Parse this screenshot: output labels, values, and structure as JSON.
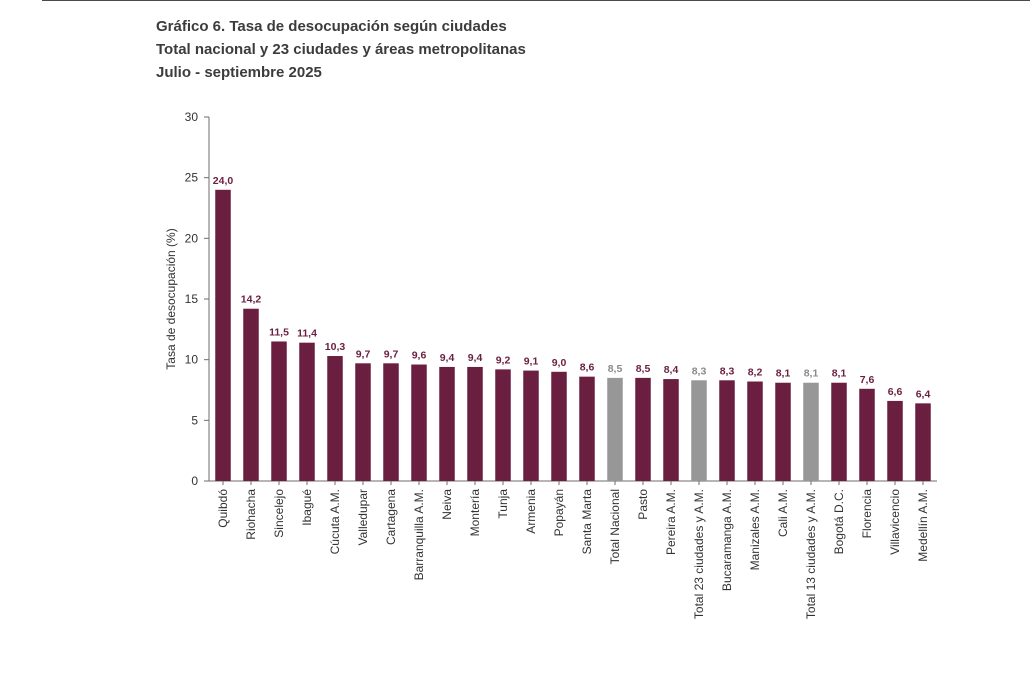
{
  "header": {
    "title": "Gráfico 6. Tasa de desocupación según ciudades",
    "subtitle": "Total nacional y 23 ciudades y áreas metropolitanas",
    "period": "Julio - septiembre 2025"
  },
  "colors": {
    "city": "#6b1f40",
    "aggregate": "#979797",
    "city_label": "#6b1f40",
    "aggregate_label": "#8a8a8a"
  },
  "chart_data": {
    "type": "bar",
    "title": "Gráfico 6. Tasa de desocupación según ciudades",
    "ylabel": "Tasa de desocupación (%)",
    "xlabel": "",
    "ylim": [
      0,
      30
    ],
    "yticks": [
      0,
      5,
      10,
      15,
      20,
      25,
      30
    ],
    "grid": false,
    "categories": [
      "Quibdó",
      "Riohacha",
      "Sincelejo",
      "Ibagué",
      "Cúcuta A.M.",
      "Valledupar",
      "Cartagena",
      "Barranquilla A.M.",
      "Neiva",
      "Montería",
      "Tunja",
      "Armenia",
      "Popayán",
      "Santa Marta",
      "Total Nacional",
      "Pasto",
      "Pereira A.M.",
      "Total 23 ciudades y A.M.",
      "Bucaramanga A.M.",
      "Manizales A.M.",
      "Cali A.M.",
      "Total 13 ciudades y A.M.",
      "Bogotá D.C.",
      "Florencia",
      "Villavicencio",
      "Medellín A.M."
    ],
    "values": [
      24.0,
      14.2,
      11.5,
      11.4,
      10.3,
      9.7,
      9.7,
      9.6,
      9.4,
      9.4,
      9.2,
      9.1,
      9.0,
      8.6,
      8.5,
      8.5,
      8.4,
      8.3,
      8.3,
      8.2,
      8.1,
      8.1,
      8.1,
      7.6,
      6.6,
      6.4
    ],
    "value_labels": [
      "24,0",
      "14,2",
      "11,5",
      "11,4",
      "10,3",
      "9,7",
      "9,7",
      "9,6",
      "9,4",
      "9,4",
      "9,2",
      "9,1",
      "9,0",
      "8,6",
      "8,5",
      "8,5",
      "8,4",
      "8,3",
      "8,3",
      "8,2",
      "8,1",
      "8,1",
      "8,1",
      "7,6",
      "6,6",
      "6,4"
    ],
    "aggregate": [
      false,
      false,
      false,
      false,
      false,
      false,
      false,
      false,
      false,
      false,
      false,
      false,
      false,
      false,
      true,
      false,
      false,
      true,
      false,
      false,
      false,
      true,
      false,
      false,
      false,
      false
    ]
  }
}
